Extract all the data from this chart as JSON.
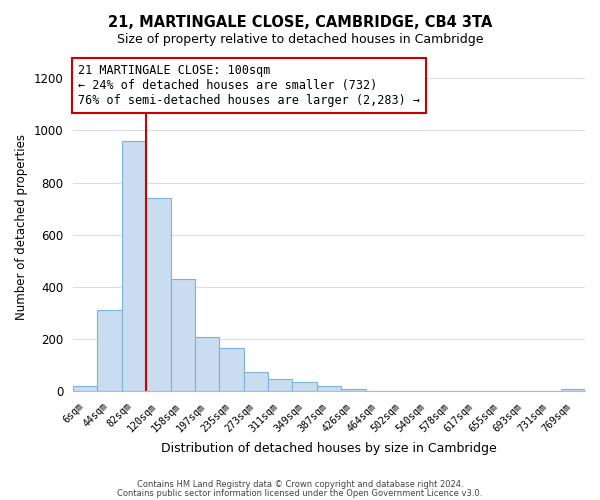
{
  "title": "21, MARTINGALE CLOSE, CAMBRIDGE, CB4 3TA",
  "subtitle": "Size of property relative to detached houses in Cambridge",
  "xlabel": "Distribution of detached houses by size in Cambridge",
  "ylabel": "Number of detached properties",
  "bar_labels": [
    "6sqm",
    "44sqm",
    "82sqm",
    "120sqm",
    "158sqm",
    "197sqm",
    "235sqm",
    "273sqm",
    "311sqm",
    "349sqm",
    "387sqm",
    "426sqm",
    "464sqm",
    "502sqm",
    "540sqm",
    "578sqm",
    "617sqm",
    "655sqm",
    "693sqm",
    "731sqm",
    "769sqm"
  ],
  "bar_values": [
    20,
    310,
    960,
    740,
    430,
    210,
    165,
    75,
    48,
    35,
    20,
    8,
    3,
    2,
    0,
    0,
    0,
    0,
    0,
    0,
    8
  ],
  "bar_color": "#c9dcf0",
  "bar_edge_color": "#7ab4d8",
  "property_line_color": "#cc0000",
  "annotation_line1": "21 MARTINGALE CLOSE: 100sqm",
  "annotation_line2": "← 24% of detached houses are smaller (732)",
  "annotation_line3": "76% of semi-detached houses are larger (2,283) →",
  "annotation_box_color": "#ffffff",
  "annotation_box_edge": "#cc0000",
  "ylim": [
    0,
    1260
  ],
  "yticks": [
    0,
    200,
    400,
    600,
    800,
    1000,
    1200
  ],
  "footer_line1": "Contains HM Land Registry data © Crown copyright and database right 2024.",
  "footer_line2": "Contains public sector information licensed under the Open Government Licence v3.0.",
  "background_color": "#ffffff",
  "grid_color": "#d8dde8"
}
